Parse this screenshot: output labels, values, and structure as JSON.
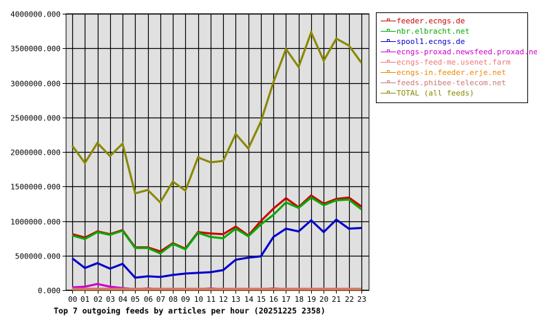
{
  "chart_data": {
    "type": "line",
    "title": "Top 7 outgoing feeds by articles per hour (20251225 2358)",
    "xlabel": "",
    "ylabel": "",
    "ylim": [
      0,
      4000000
    ],
    "yticks": [
      "0.000",
      "500000.000",
      "1000000.000",
      "1500000.000",
      "2000000.000",
      "2500000.000",
      "3000000.000",
      "3500000.000",
      "4000000.000"
    ],
    "grid": true,
    "legend_position": "right",
    "categories": [
      "00",
      "01",
      "02",
      "03",
      "04",
      "05",
      "06",
      "07",
      "08",
      "09",
      "10",
      "11",
      "12",
      "13",
      "14",
      "15",
      "16",
      "17",
      "18",
      "19",
      "20",
      "21",
      "22",
      "23"
    ],
    "series": [
      {
        "name": "feeder.ecngs.de",
        "color": "#cc0000",
        "values": [
          810000,
          760000,
          850000,
          810000,
          870000,
          620000,
          620000,
          560000,
          680000,
          600000,
          840000,
          820000,
          810000,
          920000,
          790000,
          1000000,
          1180000,
          1330000,
          1200000,
          1370000,
          1250000,
          1320000,
          1340000,
          1210000
        ]
      },
      {
        "name": "nbr.elbracht.net",
        "color": "#00aa00",
        "values": [
          790000,
          740000,
          840000,
          800000,
          860000,
          610000,
          610000,
          530000,
          670000,
          590000,
          830000,
          770000,
          750000,
          890000,
          780000,
          950000,
          1090000,
          1270000,
          1190000,
          1340000,
          1230000,
          1300000,
          1310000,
          1170000
        ]
      },
      {
        "name": "spool1.ecngs.de",
        "color": "#0000cc",
        "values": [
          460000,
          320000,
          390000,
          310000,
          380000,
          180000,
          200000,
          190000,
          220000,
          240000,
          250000,
          260000,
          290000,
          440000,
          470000,
          490000,
          770000,
          890000,
          850000,
          1010000,
          840000,
          1020000,
          890000,
          900000
        ]
      },
      {
        "name": "ecngs-proxad.newsfeed.proxad.net",
        "color": "#cc00cc",
        "values": [
          40000,
          50000,
          90000,
          50000,
          30000,
          15000,
          25000,
          15000,
          15000,
          15000,
          15000,
          25000,
          15000,
          15000,
          15000,
          15000,
          25000,
          15000,
          15000,
          20000,
          20000,
          20000,
          15000,
          15000
        ]
      },
      {
        "name": "ecngs-feed-me.usenet.farm",
        "color": "#ee7777",
        "values": [
          15000,
          15000,
          10000,
          10000,
          10000,
          10000,
          10000,
          10000,
          10000,
          10000,
          10000,
          10000,
          10000,
          10000,
          10000,
          10000,
          10000,
          10000,
          10000,
          10000,
          10000,
          10000,
          10000,
          10000
        ]
      },
      {
        "name": "ecngs-in.feeder.erje.net",
        "color": "#ee8800",
        "values": [
          10000,
          10000,
          10000,
          10000,
          10000,
          10000,
          10000,
          10000,
          10000,
          10000,
          10000,
          10000,
          10000,
          10000,
          10000,
          10000,
          10000,
          10000,
          10000,
          10000,
          10000,
          10000,
          10000,
          10000
        ]
      },
      {
        "name": "feeds.phibee-telecom.net",
        "color": "#cc7777",
        "values": [
          20000,
          20000,
          20000,
          20000,
          20000,
          20000,
          20000,
          20000,
          20000,
          20000,
          20000,
          20000,
          20000,
          20000,
          20000,
          20000,
          20000,
          20000,
          20000,
          20000,
          20000,
          20000,
          20000,
          20000
        ]
      },
      {
        "name": "TOTAL (all feeds)",
        "color": "#888800",
        "values": [
          2090000,
          1840000,
          2130000,
          1940000,
          2120000,
          1400000,
          1450000,
          1270000,
          1570000,
          1440000,
          1920000,
          1850000,
          1870000,
          2260000,
          2050000,
          2440000,
          3010000,
          3490000,
          3230000,
          3730000,
          3320000,
          3640000,
          3540000,
          3290000
        ]
      }
    ]
  },
  "colors": {
    "plot_background": "#e0e0e0",
    "grid": "#000000",
    "page_background": "#ffffff"
  }
}
